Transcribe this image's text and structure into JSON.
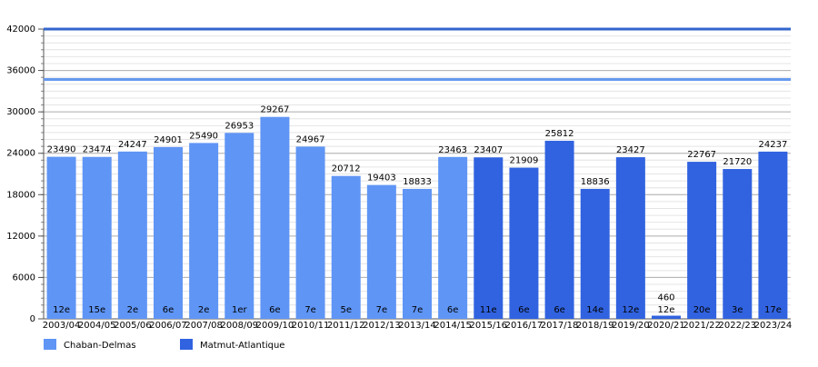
{
  "chart_data": {
    "type": "bar",
    "categories": [
      "2003/04",
      "2004/05",
      "2005/06",
      "2006/07",
      "2007/08",
      "2008/09",
      "2009/10",
      "2010/11",
      "2011/12",
      "2012/13",
      "2013/14",
      "2014/15",
      "2015/16",
      "2016/17",
      "2017/18",
      "2018/19",
      "2019/20",
      "2020/21",
      "2021/22",
      "2022/23",
      "2023/24"
    ],
    "series": [
      {
        "name": "Chaban-Delmas",
        "color": "#5f95f5",
        "values": [
          23490,
          23474,
          24247,
          24901,
          25490,
          26953,
          29267,
          24967,
          20712,
          19403,
          18833,
          23463,
          null,
          null,
          null,
          null,
          null,
          null,
          null,
          null,
          null
        ]
      },
      {
        "name": "Matmut-Atlantique",
        "color": "#3163e0",
        "values": [
          null,
          null,
          null,
          null,
          null,
          null,
          null,
          null,
          null,
          null,
          null,
          null,
          23407,
          21909,
          25812,
          18836,
          23427,
          460,
          22767,
          21720,
          24237
        ]
      }
    ],
    "ranks": [
      "12e",
      "15e",
      "2e",
      "6e",
      "2e",
      "1er",
      "6e",
      "7e",
      "5e",
      "7e",
      "7e",
      "6e",
      "11e",
      "6e",
      "6e",
      "14e",
      "12e",
      "12e",
      "20e",
      "3e",
      "17e"
    ],
    "reference_lines": [
      {
        "value": 42000,
        "color": "#3366cc"
      },
      {
        "value": 34700,
        "color": "#6699ee"
      }
    ],
    "ylim": [
      0,
      42000
    ],
    "yticks": [
      0,
      6000,
      12000,
      18000,
      24000,
      30000,
      36000,
      42000
    ],
    "grid": true,
    "minor_grid_step": 1000
  }
}
